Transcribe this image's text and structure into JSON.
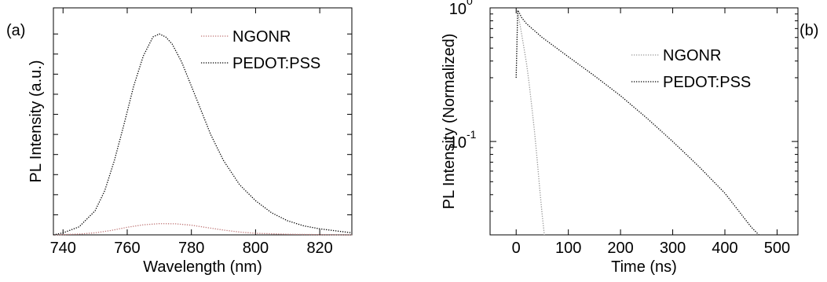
{
  "chart_data": [
    {
      "panel": "(a)",
      "type": "line",
      "title": "",
      "xlabel": "Wavelength (nm)",
      "ylabel": "PL Intensity (a.u.)",
      "xlim": [
        737,
        830
      ],
      "ylim": [
        0,
        1.13
      ],
      "xticks": [
        740,
        760,
        780,
        800,
        820
      ],
      "yticks_labeled": false,
      "grid": false,
      "legend": "top-right",
      "series": [
        {
          "name": "NGONR",
          "color": "#c07878",
          "style": "dotted",
          "x": [
            737,
            745,
            750,
            755,
            760,
            765,
            770,
            775,
            780,
            785,
            790,
            795,
            800,
            810,
            820,
            830
          ],
          "y": [
            0.0,
            0.004,
            0.01,
            0.022,
            0.038,
            0.05,
            0.056,
            0.055,
            0.048,
            0.036,
            0.024,
            0.014,
            0.008,
            0.003,
            0.001,
            0.0
          ]
        },
        {
          "name": "PEDOT:PSS",
          "color": "#000000",
          "style": "dotted",
          "x": [
            737,
            740,
            745,
            750,
            753,
            756,
            759,
            762,
            765,
            768,
            770,
            772,
            774,
            777,
            780,
            783,
            786,
            790,
            795,
            800,
            805,
            810,
            815,
            820,
            825,
            830
          ],
          "y": [
            0.0,
            0.01,
            0.04,
            0.12,
            0.22,
            0.37,
            0.55,
            0.74,
            0.89,
            0.985,
            1.0,
            0.985,
            0.95,
            0.86,
            0.74,
            0.62,
            0.5,
            0.37,
            0.25,
            0.17,
            0.11,
            0.07,
            0.045,
            0.03,
            0.02,
            0.01
          ]
        }
      ]
    },
    {
      "panel": "(b)",
      "type": "line",
      "title": "",
      "xlabel": "Time (ns)",
      "ylabel": "PL Intensity (Normalized)",
      "xlim": [
        -50,
        540
      ],
      "ylim": [
        0.02,
        1.0
      ],
      "yscale": "log",
      "xticks": [
        0,
        100,
        200,
        300,
        400,
        500
      ],
      "yticks": [
        {
          "value": 1.0,
          "base": "10",
          "exp": "0"
        },
        {
          "value": 0.1,
          "base": "10",
          "exp": "-1"
        }
      ],
      "grid": false,
      "legend": "top-right",
      "series": [
        {
          "name": "NGONR",
          "color": "#999999",
          "style": "dotted",
          "x": [
            0,
            3,
            6,
            10,
            15,
            20,
            25,
            30,
            35,
            40,
            45,
            50,
            54
          ],
          "y": [
            0.3,
            0.95,
            0.8,
            0.65,
            0.5,
            0.38,
            0.27,
            0.18,
            0.12,
            0.075,
            0.045,
            0.028,
            0.02
          ]
        },
        {
          "name": "PEDOT:PSS",
          "color": "#000000",
          "style": "dotted",
          "x": [
            0,
            3,
            6,
            10,
            20,
            50,
            100,
            150,
            200,
            250,
            300,
            350,
            400,
            430,
            450,
            465
          ],
          "y": [
            0.3,
            0.96,
            0.92,
            0.85,
            0.76,
            0.6,
            0.43,
            0.31,
            0.22,
            0.15,
            0.1,
            0.065,
            0.041,
            0.029,
            0.023,
            0.02
          ]
        }
      ]
    }
  ]
}
